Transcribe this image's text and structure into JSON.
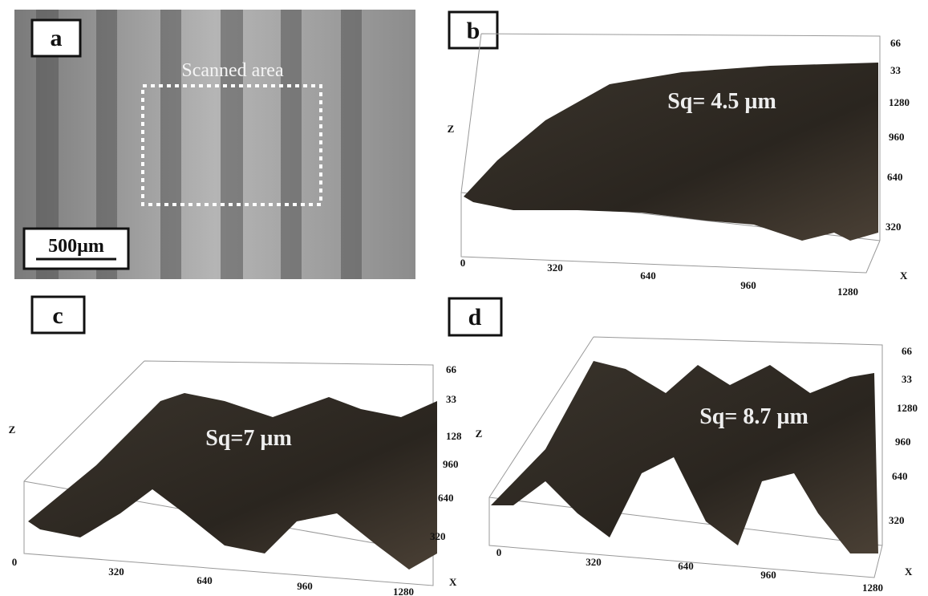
{
  "panels": [
    {
      "label": "a",
      "annotation": "Scanned area",
      "scale_bar": "500µm"
    },
    {
      "label": "b",
      "sq": "Sq= 4.5 µm",
      "z_label": "Z",
      "x_label": "X",
      "z_ticks": [
        "66",
        "33"
      ],
      "y_ticks": [
        "1280",
        "960",
        "640",
        "320"
      ],
      "x_ticks": [
        "0",
        "320",
        "640",
        "960",
        "1280"
      ]
    },
    {
      "label": "c",
      "sq": "Sq=7 µm",
      "z_label": "Z",
      "x_label": "X",
      "z_ticks": [
        "66",
        "33"
      ],
      "y_ticks": [
        "128",
        "960",
        "640",
        "320"
      ],
      "x_ticks": [
        "0",
        "320",
        "640",
        "960",
        "1280"
      ]
    },
    {
      "label": "d",
      "sq": "Sq= 8.7 µm",
      "z_label": "Z",
      "x_label": "X",
      "z_ticks": [
        "66",
        "33"
      ],
      "y_ticks": [
        "1280",
        "960",
        "640",
        "320"
      ],
      "x_ticks": [
        "0",
        "320",
        "640",
        "960",
        "1280"
      ]
    }
  ]
}
